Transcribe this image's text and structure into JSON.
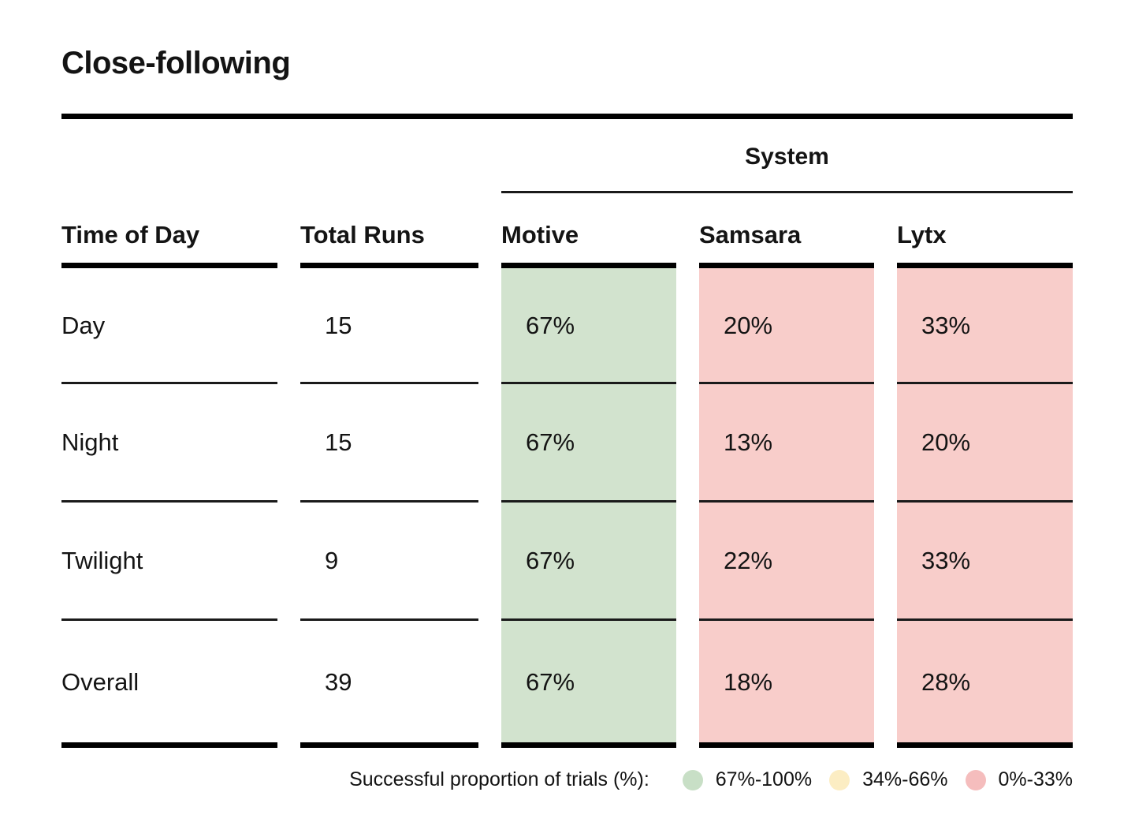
{
  "chart_data": {
    "type": "table",
    "title": "Close-following",
    "column_group_label": "System",
    "columns": [
      "Time of Day",
      "Total Runs",
      "Motive",
      "Samsara",
      "Lytx"
    ],
    "grouped_columns": [
      "Motive",
      "Samsara",
      "Lytx"
    ],
    "rows": [
      {
        "time_of_day": "Day",
        "total_runs": "15",
        "motive": "67%",
        "samsara": "20%",
        "lytx": "33%"
      },
      {
        "time_of_day": "Night",
        "total_runs": "15",
        "motive": "67%",
        "samsara": "13%",
        "lytx": "20%"
      },
      {
        "time_of_day": "Twilight",
        "total_runs": "9",
        "motive": "67%",
        "samsara": "22%",
        "lytx": "33%"
      },
      {
        "time_of_day": "Overall",
        "total_runs": "39",
        "motive": "67%",
        "samsara": "18%",
        "lytx": "28%"
      }
    ]
  },
  "legend": {
    "label": "Successful proportion of trials (%):",
    "bins": [
      {
        "label": "67%-100%",
        "color": "#c8dfc6"
      },
      {
        "label": "34%-66%",
        "color": "#fcedc3"
      },
      {
        "label": "0%-33%",
        "color": "#f5bdbd"
      }
    ]
  },
  "colors": {
    "cell_success_high": "#d2e3ce",
    "cell_success_low": "#f8cdca",
    "rule_heavy": "#000000",
    "rule_light": "#1a1a1a",
    "text": "#141414"
  }
}
